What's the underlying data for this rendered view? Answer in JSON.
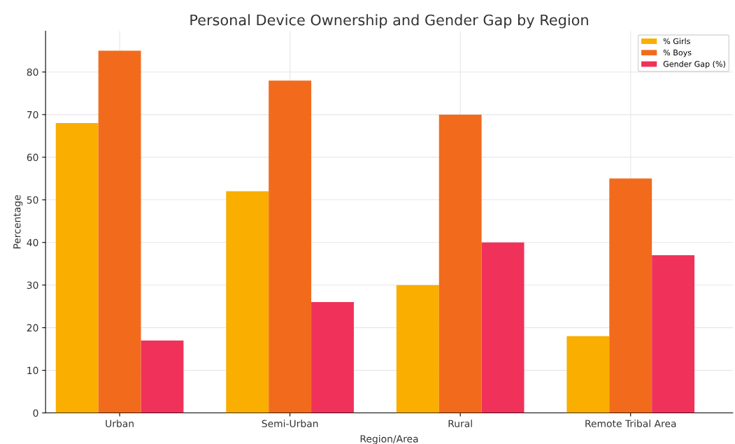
{
  "chart_data": {
    "type": "bar",
    "title": "Personal Device Ownership and Gender Gap by Region",
    "xlabel": "Region/Area",
    "ylabel": "Percentage",
    "categories": [
      "Urban",
      "Semi-Urban",
      "Rural",
      "Remote Tribal Area"
    ],
    "series": [
      {
        "name": "% Girls",
        "color": "#f9ae00",
        "values": [
          68,
          52,
          30,
          18
        ]
      },
      {
        "name": "% Boys",
        "color": "#f26b1d",
        "values": [
          85,
          78,
          70,
          55
        ]
      },
      {
        "name": "Gender Gap (%)",
        "color": "#f0325a",
        "values": [
          17,
          26,
          40,
          37
        ]
      }
    ],
    "ylim": [
      0,
      89.6
    ],
    "yticks": [
      0,
      10,
      20,
      30,
      40,
      50,
      60,
      70,
      80
    ],
    "grid": true,
    "legend": "top right"
  }
}
